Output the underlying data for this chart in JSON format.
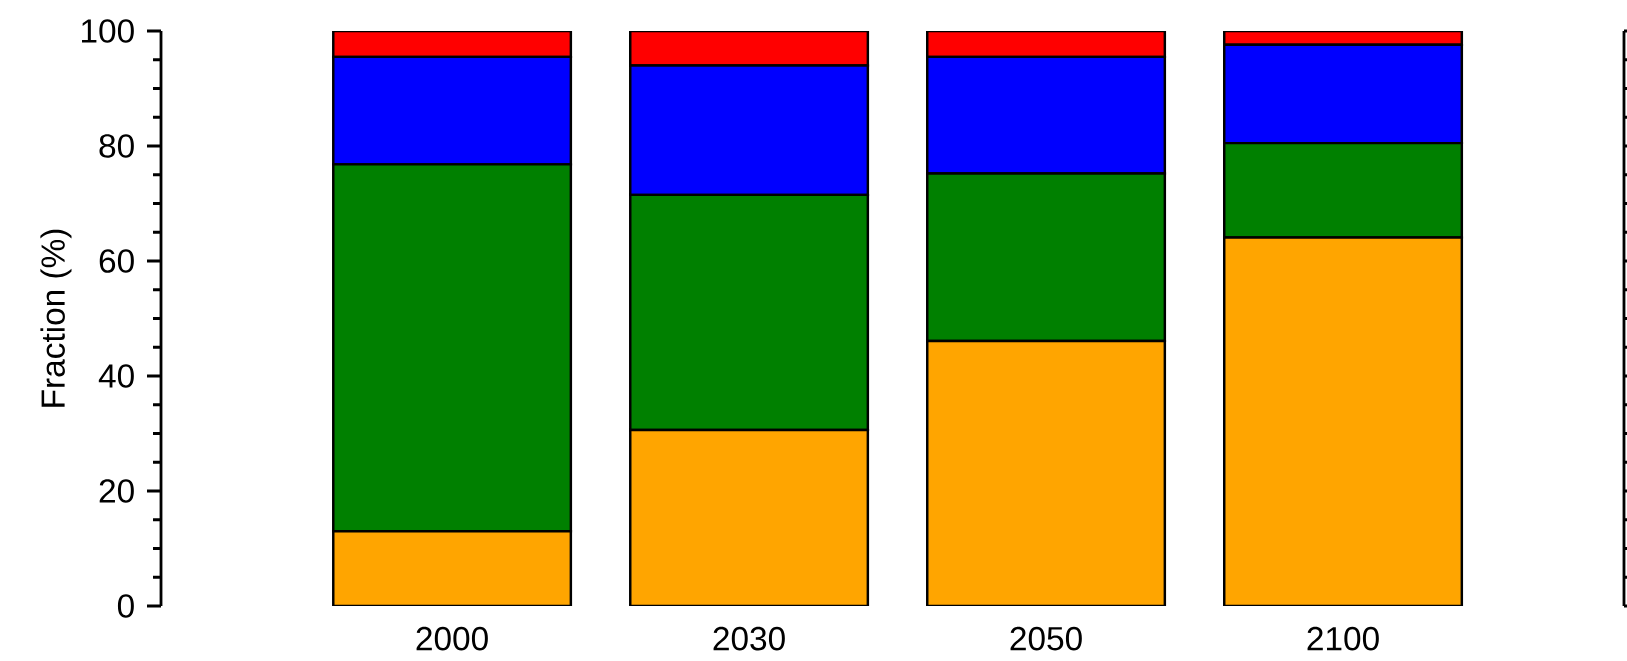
{
  "chart_data": {
    "type": "bar",
    "stacked": true,
    "ylabel": "Fraction (%)",
    "categories": [
      "2000",
      "2030",
      "2050",
      "2100"
    ],
    "series": [
      {
        "color": "#ffa500",
        "values": [
          13.0,
          30.6,
          46.1,
          64.1
        ]
      },
      {
        "color": "#008000",
        "values": [
          63.8,
          40.9,
          29.1,
          16.4
        ]
      },
      {
        "color": "#0000ff",
        "values": [
          18.7,
          22.5,
          20.3,
          17.1
        ]
      },
      {
        "color": "#ff0000",
        "values": [
          4.5,
          6.0,
          4.5,
          2.4
        ]
      }
    ],
    "ylim": [
      0,
      100
    ],
    "yticks": [
      0,
      20,
      40,
      60,
      80,
      100
    ],
    "grid": false
  }
}
